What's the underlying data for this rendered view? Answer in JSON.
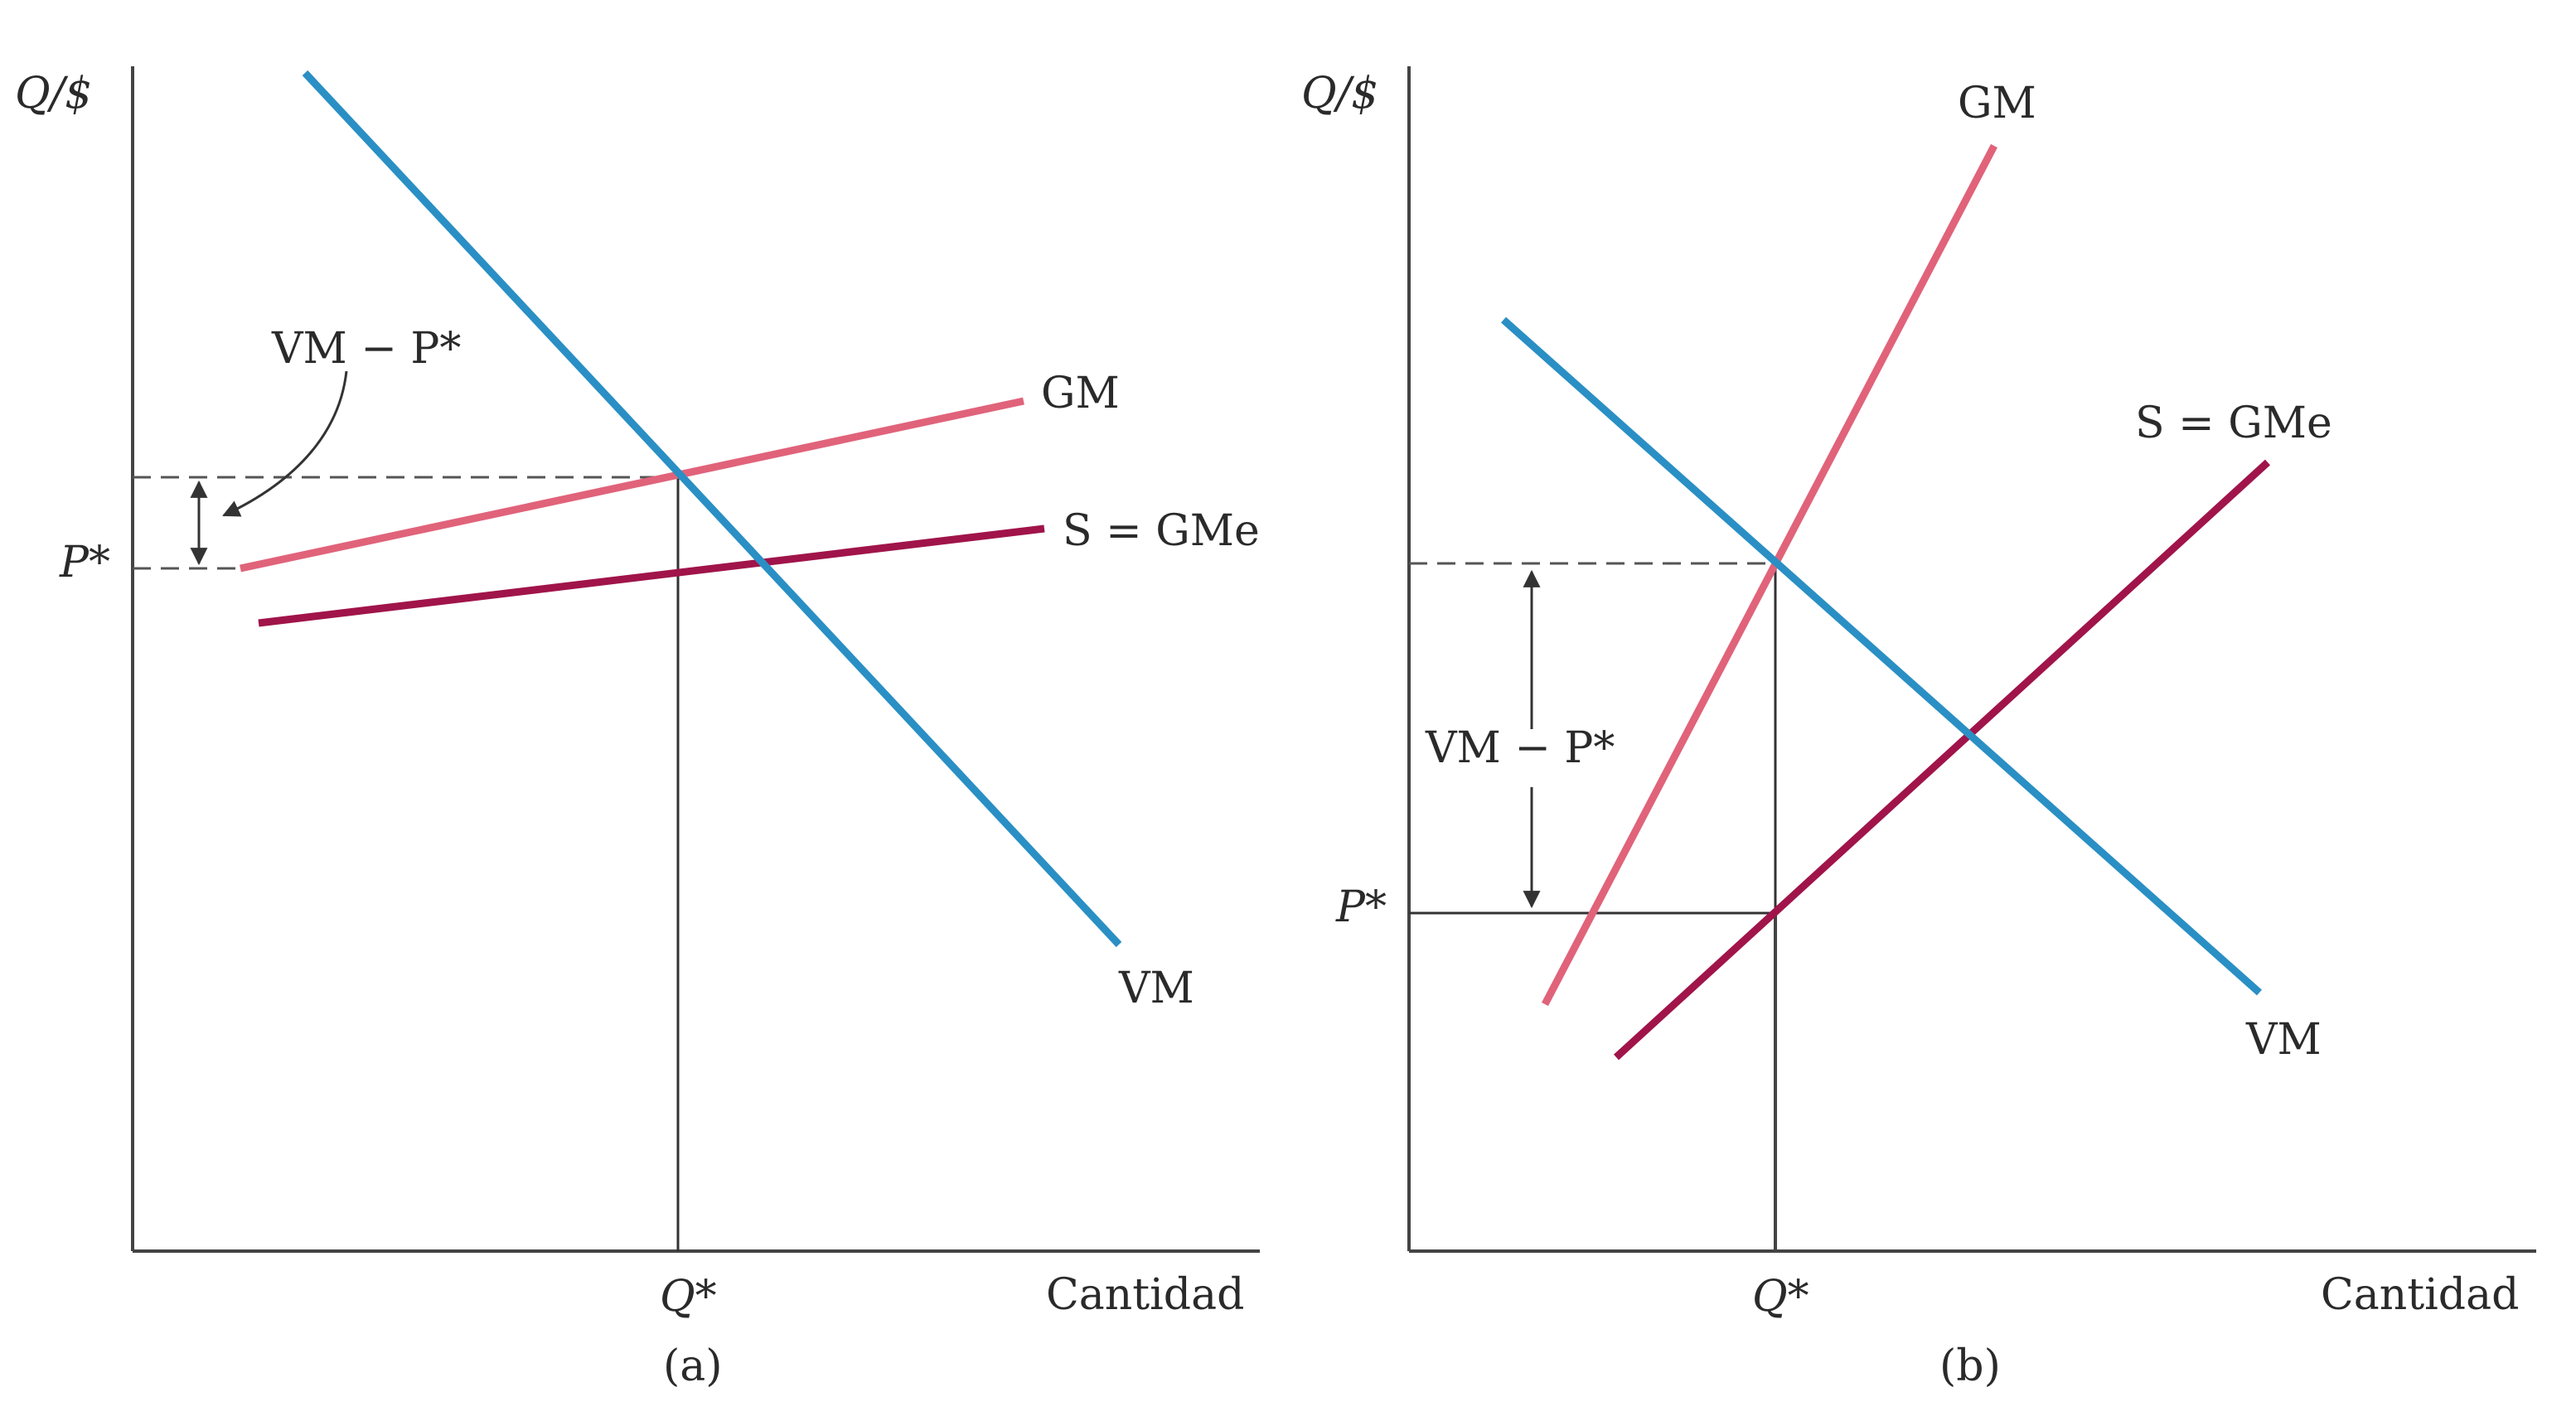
{
  "colors": {
    "vm": "#2a8fc4",
    "gm": "#e0637a",
    "supply": "#a0144a",
    "axis": "#444444"
  },
  "panel_a": {
    "y_axis_label": "Q/$",
    "x_axis_label": "Cantidad",
    "q_label": "Q*",
    "p_label": "P*",
    "caption": "(a)",
    "gap_label": "VM − P*",
    "vm_label": "VM",
    "gm_label": "GM",
    "supply_label": "S = GMe"
  },
  "panel_b": {
    "y_axis_label": "Q/$",
    "x_axis_label": "Cantidad",
    "q_label": "Q*",
    "p_label": "P*",
    "caption": "(b)",
    "gap_label": "VM − P*",
    "vm_label": "VM",
    "gm_label": "GM",
    "supply_label": "S = GMe"
  }
}
